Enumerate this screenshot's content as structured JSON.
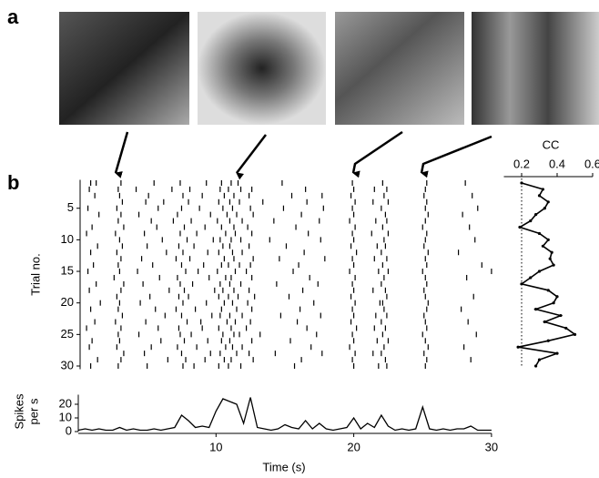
{
  "panel_labels": [
    "a",
    "b"
  ],
  "chart_data": [
    {
      "type": "raster",
      "ylabel": "Trial no.",
      "xlim": [
        0,
        30
      ],
      "ylim": [
        0.5,
        30.5
      ],
      "yticks": [
        5,
        10,
        15,
        20,
        25,
        30
      ],
      "trials": [
        [
          0.9,
          1.3,
          3.1,
          5.5,
          7.4,
          9.3,
          10.4,
          11.1,
          11.6,
          14.8,
          19.9,
          22.1,
          25.3,
          28.1
        ],
        [
          0.8,
          2.9,
          4.2,
          6.8,
          8.1,
          10.3,
          10.9,
          11.8,
          12.6,
          16.5,
          20.0,
          21.5,
          22.4,
          25.2
        ],
        [
          1.2,
          3.0,
          5.1,
          7.6,
          9.0,
          10.6,
          11.3,
          12.4,
          15.5,
          17.7,
          19.8,
          22.2,
          25.1,
          28.6
        ],
        [
          3.2,
          4.9,
          6.2,
          8.0,
          10.2,
          11.0,
          11.7,
          13.4,
          16.6,
          20.1,
          21.4,
          22.5,
          25.3
        ],
        [
          0.7,
          2.8,
          5.8,
          7.5,
          8.8,
          10.5,
          11.2,
          12.5,
          14.9,
          17.8,
          19.9,
          22.0,
          25.2,
          29.0
        ],
        [
          1.5,
          3.1,
          4.4,
          7.2,
          9.6,
          10.8,
          11.5,
          12.7,
          16.2,
          20.0,
          22.3,
          25.4,
          27.9
        ],
        [
          2.9,
          5.3,
          6.9,
          8.2,
          10.1,
          11.0,
          11.9,
          14.2,
          17.5,
          19.7,
          21.6,
          22.4,
          25.2
        ],
        [
          1.0,
          3.3,
          5.7,
          7.7,
          9.2,
          10.4,
          11.3,
          12.3,
          15.8,
          20.1,
          22.1,
          25.0,
          28.4
        ],
        [
          0.6,
          2.7,
          4.8,
          7.4,
          8.6,
          10.7,
          11.4,
          12.6,
          16.7,
          19.9,
          21.3,
          22.5,
          25.3
        ],
        [
          3.0,
          6.1,
          7.9,
          9.8,
          10.3,
          11.1,
          11.8,
          13.9,
          17.6,
          20.0,
          22.2,
          25.2,
          28.8
        ],
        [
          1.4,
          3.2,
          5.0,
          7.3,
          8.4,
          10.5,
          11.0,
          12.4,
          15.1,
          19.8,
          21.7,
          22.3,
          25.1
        ],
        [
          0.9,
          2.8,
          6.4,
          7.6,
          9.4,
          10.2,
          11.2,
          11.9,
          16.4,
          20.2,
          22.0,
          25.4,
          27.6
        ],
        [
          3.1,
          4.6,
          7.1,
          8.1,
          10.6,
          11.3,
          12.7,
          14.6,
          17.9,
          19.9,
          21.5,
          22.4,
          25.2
        ],
        [
          1.1,
          2.9,
          5.4,
          7.5,
          9.1,
          10.4,
          10.9,
          11.7,
          12.5,
          16.0,
          20.0,
          22.1,
          25.3,
          29.3
        ],
        [
          0.7,
          3.0,
          4.3,
          7.8,
          8.7,
          10.1,
          11.4,
          12.2,
          15.6,
          19.7,
          21.8,
          22.5,
          25.0,
          30.0
        ],
        [
          2.6,
          5.9,
          7.2,
          9.5,
          10.7,
          11.1,
          12.6,
          16.8,
          20.1,
          22.2,
          25.2,
          28.2
        ],
        [
          1.3,
          3.3,
          4.7,
          7.4,
          8.3,
          10.3,
          11.0,
          11.8,
          14.4,
          17.4,
          19.9,
          22.0,
          25.3
        ],
        [
          0.8,
          3.1,
          6.6,
          7.7,
          9.9,
          10.5,
          11.3,
          12.4,
          16.3,
          20.0,
          21.4,
          22.3,
          25.1
        ],
        [
          2.8,
          5.2,
          7.3,
          8.0,
          10.2,
          10.9,
          11.6,
          12.8,
          15.3,
          19.8,
          22.4,
          25.2,
          28.7
        ],
        [
          1.6,
          3.0,
          4.5,
          7.6,
          9.3,
          10.6,
          11.2,
          12.3,
          17.1,
          20.1,
          21.9,
          22.1,
          25.4
        ],
        [
          0.9,
          2.9,
          5.6,
          7.1,
          8.5,
          10.4,
          11.5,
          12.6,
          16.1,
          19.9,
          22.2,
          25.3,
          27.8
        ],
        [
          3.2,
          6.3,
          7.5,
          9.7,
          10.3,
          11.0,
          11.9,
          14.7,
          17.6,
          20.0,
          21.6,
          22.4,
          25.1
        ],
        [
          1.2,
          2.7,
          4.9,
          7.9,
          8.9,
          10.8,
          11.4,
          12.5,
          15.9,
          19.8,
          22.0,
          25.2,
          28.3
        ],
        [
          0.6,
          3.1,
          5.8,
          7.3,
          9.0,
          10.2,
          11.1,
          12.2,
          16.6,
          20.2,
          21.5,
          22.3,
          25.3
        ],
        [
          2.9,
          4.4,
          7.4,
          8.2,
          10.5,
          11.3,
          11.7,
          13.2,
          17.3,
          19.9,
          22.1,
          25.0,
          28.9
        ],
        [
          1.0,
          3.0,
          6.0,
          7.7,
          9.4,
          10.4,
          11.0,
          12.6,
          15.4,
          20.0,
          21.7,
          22.5,
          25.2
        ],
        [
          0.8,
          2.8,
          5.3,
          7.2,
          8.6,
          10.7,
          11.2,
          11.9,
          16.9,
          19.7,
          22.2,
          25.4,
          28.0
        ],
        [
          3.3,
          4.8,
          7.5,
          9.6,
          10.3,
          11.5,
          12.4,
          14.3,
          17.7,
          20.1,
          21.4,
          22.0,
          25.1
        ],
        [
          1.4,
          3.1,
          6.5,
          7.8,
          9.2,
          10.6,
          11.1,
          12.7,
          16.2,
          19.9,
          22.3,
          25.3,
          28.5
        ],
        [
          0.9,
          2.9,
          5.0,
          7.6,
          8.4,
          10.2,
          10.9,
          11.8,
          15.7,
          20.0,
          21.8,
          22.4,
          25.2
        ]
      ]
    },
    {
      "type": "line",
      "xlabel": "Time (s)",
      "ylabel": [
        "Spikes",
        "per s"
      ],
      "xlim": [
        0,
        30
      ],
      "ylim": [
        0,
        27
      ],
      "xticks": [
        10,
        20,
        30
      ],
      "yticks": [
        0,
        10,
        20
      ],
      "color": "#000000",
      "x": [
        0,
        0.5,
        1,
        1.5,
        2,
        2.5,
        3,
        3.5,
        4,
        4.5,
        5,
        5.5,
        6,
        6.5,
        7,
        7.5,
        8,
        8.5,
        9,
        9.5,
        10,
        10.5,
        11,
        11.5,
        12,
        12.5,
        13,
        13.5,
        14,
        14.5,
        15,
        15.5,
        16,
        16.5,
        17,
        17.5,
        18,
        18.5,
        19,
        19.5,
        20,
        20.5,
        21,
        21.5,
        22,
        22.5,
        23,
        23.5,
        24,
        24.5,
        25,
        25.5,
        26,
        26.5,
        27,
        27.5,
        28,
        28.5,
        29,
        29.5,
        30
      ],
      "values": [
        1,
        2,
        1,
        2,
        1,
        1,
        3,
        1,
        2,
        1,
        1,
        2,
        1,
        2,
        3,
        12,
        8,
        3,
        4,
        3,
        15,
        24,
        22,
        20,
        6,
        25,
        3,
        2,
        1,
        2,
        5,
        3,
        2,
        8,
        2,
        6,
        2,
        1,
        2,
        3,
        10,
        2,
        6,
        3,
        12,
        4,
        1,
        2,
        1,
        2,
        18,
        2,
        1,
        2,
        1,
        2,
        2,
        4,
        1,
        1,
        1
      ]
    },
    {
      "type": "line",
      "title": "CC",
      "xlim": [
        0.1,
        0.6
      ],
      "xticks": [
        0.2,
        0.4,
        0.6
      ],
      "reference_x": 0.2,
      "ylim": [
        0.5,
        30.5
      ],
      "color": "#000000",
      "values": [
        0.2,
        0.32,
        0.3,
        0.35,
        0.33,
        0.28,
        0.25,
        0.19,
        0.3,
        0.35,
        0.32,
        0.37,
        0.36,
        0.38,
        0.3,
        0.25,
        0.2,
        0.35,
        0.4,
        0.38,
        0.28,
        0.42,
        0.33,
        0.45,
        0.5,
        0.35,
        0.18,
        0.4,
        0.3,
        0.28
      ]
    }
  ]
}
